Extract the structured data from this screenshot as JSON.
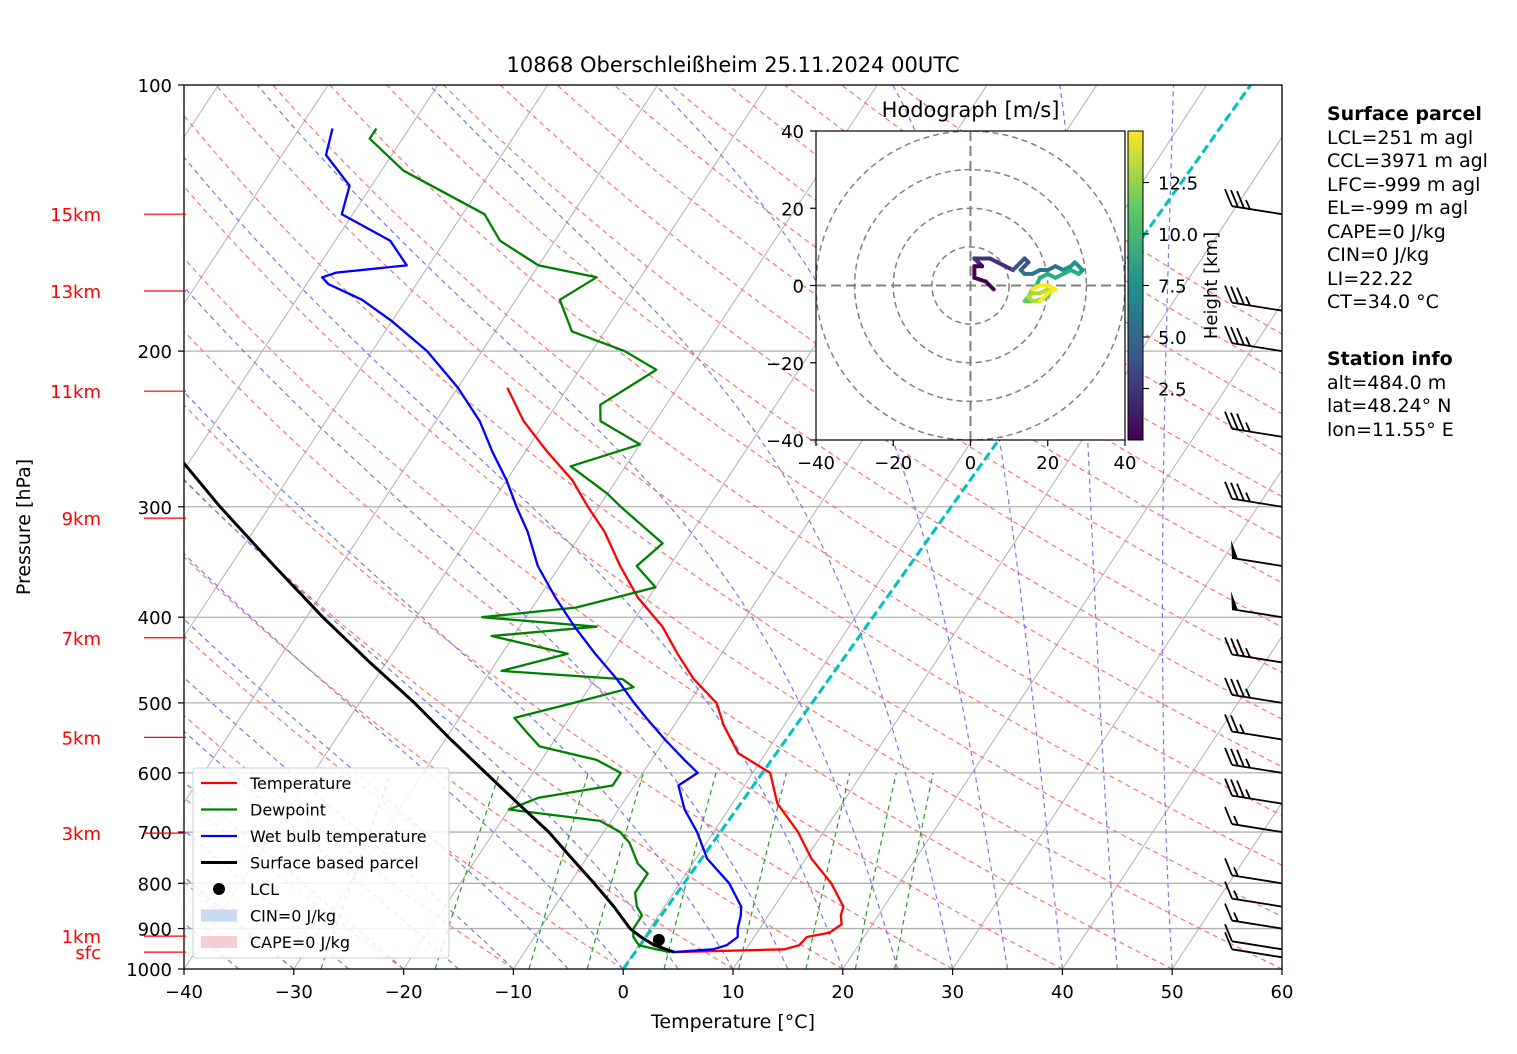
{
  "title": "10868 Oberschleißheim 25.11.2024 00UTC",
  "chart_data": {
    "type": "line",
    "subtype": "skew-T log-P diagram",
    "title": "10868 Oberschleißheim 25.11.2024 00UTC",
    "xlabel": "Temperature [°C]",
    "ylabel": "Pressure [hPa]",
    "xlim": [
      -40,
      60
    ],
    "ylim": [
      1000,
      100
    ],
    "y_scale": "log",
    "grid": true,
    "xticks": [
      "−40",
      "−30",
      "−20",
      "−10",
      "0",
      "10",
      "20",
      "30",
      "40",
      "50",
      "60"
    ],
    "yticks": [
      "100",
      "200",
      "300",
      "400",
      "500",
      "600",
      "700",
      "800",
      "900",
      "1000"
    ],
    "height_labels": [
      {
        "label": "15km",
        "p": 140
      },
      {
        "label": "13km",
        "p": 171
      },
      {
        "label": "11km",
        "p": 222
      },
      {
        "label": "9km",
        "p": 309
      },
      {
        "label": "7km",
        "p": 422
      },
      {
        "label": "5km",
        "p": 547
      },
      {
        "label": "3km",
        "p": 702
      },
      {
        "label": "1km",
        "p": 918
      },
      {
        "label": "sfc",
        "p": 957
      }
    ],
    "legend": {
      "placement": "lower-left",
      "entries": [
        {
          "label": "Temperature",
          "color": "#ff0000",
          "kind": "line"
        },
        {
          "label": "Dewpoint",
          "color": "#008000",
          "kind": "line"
        },
        {
          "label": "Wet bulb temperature",
          "color": "#0000ff",
          "kind": "line"
        },
        {
          "label": "Surface based parcel",
          "color": "#000000",
          "kind": "line"
        },
        {
          "label": "LCL",
          "color": "#000000",
          "kind": "dot"
        },
        {
          "label": "CIN=0 J/kg",
          "color": "#c6dbef",
          "kind": "patch"
        },
        {
          "label": "CAPE=0 J/kg",
          "color": "#f6cfd4",
          "kind": "patch"
        }
      ]
    },
    "series": [
      {
        "name": "Temperature",
        "color": "#ff0000",
        "points": [
          [
            957,
            3.6
          ],
          [
            950,
            13.5
          ],
          [
            940,
            14.6
          ],
          [
            920,
            14.8
          ],
          [
            910,
            16.6
          ],
          [
            890,
            17.2
          ],
          [
            870,
            16.6
          ],
          [
            850,
            16.3
          ],
          [
            800,
            13.8
          ],
          [
            750,
            10.5
          ],
          [
            700,
            7.7
          ],
          [
            650,
            4.1
          ],
          [
            600,
            1.6
          ],
          [
            570,
            -2.5
          ],
          [
            530,
            -5.5
          ],
          [
            500,
            -7.5
          ],
          [
            470,
            -11
          ],
          [
            440,
            -14
          ],
          [
            410,
            -17
          ],
          [
            380,
            -21
          ],
          [
            350,
            -24.5
          ],
          [
            320,
            -28
          ],
          [
            300,
            -31
          ],
          [
            280,
            -34
          ],
          [
            260,
            -38
          ],
          [
            240,
            -42
          ],
          [
            220,
            -45.5
          ]
        ]
      },
      {
        "name": "Dewpoint",
        "color": "#008000",
        "points": [
          [
            957,
            3.3
          ],
          [
            950,
            1.8
          ],
          [
            940,
            0
          ],
          [
            920,
            -1
          ],
          [
            900,
            -1.5
          ],
          [
            870,
            -1.5
          ],
          [
            850,
            -2.5
          ],
          [
            820,
            -3.5
          ],
          [
            780,
            -3.5
          ],
          [
            760,
            -5
          ],
          [
            720,
            -7
          ],
          [
            700,
            -8.5
          ],
          [
            680,
            -11
          ],
          [
            660,
            -20
          ],
          [
            640,
            -18
          ],
          [
            620,
            -12
          ],
          [
            600,
            -12
          ],
          [
            580,
            -15
          ],
          [
            560,
            -21
          ],
          [
            540,
            -23
          ],
          [
            520,
            -25
          ],
          [
            500,
            -20.5
          ],
          [
            480,
            -16
          ],
          [
            470,
            -17.5
          ],
          [
            460,
            -29
          ],
          [
            440,
            -24
          ],
          [
            420,
            -32
          ],
          [
            410,
            -23
          ],
          [
            400,
            -34
          ],
          [
            390,
            -26
          ],
          [
            370,
            -20
          ],
          [
            350,
            -23
          ],
          [
            330,
            -22
          ],
          [
            300,
            -28
          ],
          [
            290,
            -30
          ],
          [
            270,
            -35
          ],
          [
            255,
            -30
          ],
          [
            240,
            -35
          ],
          [
            230,
            -36
          ],
          [
            210,
            -33
          ],
          [
            200,
            -37
          ],
          [
            190,
            -43
          ],
          [
            175,
            -46
          ],
          [
            165,
            -44
          ],
          [
            160,
            -50
          ],
          [
            150,
            -55
          ],
          [
            140,
            -58
          ],
          [
            125,
            -68
          ],
          [
            115,
            -73
          ],
          [
            112,
            -73
          ]
        ]
      },
      {
        "name": "Wet bulb temperature",
        "color": "#0000ff",
        "points": [
          [
            957,
            3.5
          ],
          [
            950,
            7
          ],
          [
            940,
            8
          ],
          [
            920,
            8.5
          ],
          [
            900,
            8
          ],
          [
            870,
            7.5
          ],
          [
            850,
            7
          ],
          [
            800,
            4.5
          ],
          [
            750,
            1
          ],
          [
            700,
            -1.5
          ],
          [
            660,
            -4
          ],
          [
            620,
            -6
          ],
          [
            600,
            -5
          ],
          [
            580,
            -7
          ],
          [
            550,
            -10
          ],
          [
            520,
            -13
          ],
          [
            500,
            -15
          ],
          [
            470,
            -18
          ],
          [
            440,
            -21.5
          ],
          [
            410,
            -25
          ],
          [
            380,
            -28.5
          ],
          [
            350,
            -32
          ],
          [
            320,
            -35
          ],
          [
            300,
            -37.5
          ],
          [
            280,
            -40
          ],
          [
            260,
            -43
          ],
          [
            240,
            -46
          ],
          [
            220,
            -50
          ],
          [
            200,
            -55
          ],
          [
            185,
            -60
          ],
          [
            175,
            -64
          ],
          [
            168,
            -68
          ],
          [
            165,
            -69
          ],
          [
            163,
            -68
          ],
          [
            160,
            -62
          ],
          [
            150,
            -65
          ],
          [
            140,
            -71
          ],
          [
            130,
            -72
          ],
          [
            120,
            -76
          ],
          [
            112,
            -77
          ]
        ]
      },
      {
        "name": "Surface based parcel",
        "color": "#000000",
        "points": [
          [
            957,
            3.6
          ],
          [
            940,
            1.4
          ],
          [
            920,
            -0.3
          ],
          [
            900,
            -1.8
          ],
          [
            850,
            -4.6
          ],
          [
            800,
            -7.8
          ],
          [
            750,
            -11.3
          ],
          [
            700,
            -15
          ],
          [
            650,
            -19.5
          ],
          [
            600,
            -24.3
          ],
          [
            550,
            -29.5
          ],
          [
            500,
            -35
          ],
          [
            450,
            -41.5
          ],
          [
            400,
            -48.5
          ],
          [
            350,
            -56
          ],
          [
            300,
            -64.5
          ],
          [
            250,
            -74
          ],
          [
            230,
            -78
          ],
          [
            215,
            -82
          ]
        ]
      }
    ],
    "lcl": {
      "p": 927,
      "t": 1.5
    },
    "dashed_line": {
      "color": "#00c0c0",
      "points": [
        [
          1000,
          0
        ],
        [
          100,
          4
        ]
      ]
    },
    "wind_barbs": [
      {
        "p": 140,
        "speed_kt": 35
      },
      {
        "p": 180,
        "speed_kt": 35
      },
      {
        "p": 200,
        "speed_kt": 35
      },
      {
        "p": 250,
        "speed_kt": 35
      },
      {
        "p": 300,
        "speed_kt": 35
      },
      {
        "p": 350,
        "speed_kt": 50
      },
      {
        "p": 400,
        "speed_kt": 50
      },
      {
        "p": 450,
        "speed_kt": 35
      },
      {
        "p": 500,
        "speed_kt": 35
      },
      {
        "p": 550,
        "speed_kt": 25
      },
      {
        "p": 600,
        "speed_kt": 35
      },
      {
        "p": 650,
        "speed_kt": 35
      },
      {
        "p": 700,
        "speed_kt": 15
      },
      {
        "p": 800,
        "speed_kt": 15
      },
      {
        "p": 850,
        "speed_kt": 15
      },
      {
        "p": 900,
        "speed_kt": 15
      },
      {
        "p": 950,
        "speed_kt": 10
      },
      {
        "p": 970,
        "speed_kt": 10
      }
    ],
    "hodograph": {
      "title": "Hodograph [m/s]",
      "xlim": [
        -40,
        40
      ],
      "ylim": [
        -40,
        40
      ],
      "xticks": [
        "−40",
        "−20",
        "0",
        "20",
        "40"
      ],
      "yticks": [
        "40",
        "20",
        "0",
        "−20",
        "−40"
      ],
      "rings": [
        10,
        20,
        30,
        40
      ],
      "colorbar": {
        "label": "Height [km]",
        "ticks": [
          "2.5",
          "5.0",
          "7.5",
          "10.0",
          "12.5"
        ],
        "range": [
          0,
          15
        ]
      },
      "trace": [
        [
          6,
          -1
        ],
        [
          4,
          1
        ],
        [
          1,
          2
        ],
        [
          1,
          3
        ],
        [
          1,
          5
        ],
        [
          3,
          5
        ],
        [
          2,
          6
        ],
        [
          1,
          7
        ],
        [
          3,
          7
        ],
        [
          5,
          7
        ],
        [
          7,
          6
        ],
        [
          9,
          5
        ],
        [
          11,
          4
        ],
        [
          12,
          5
        ],
        [
          13,
          6
        ],
        [
          14,
          7
        ],
        [
          15,
          6
        ],
        [
          14,
          5
        ],
        [
          13,
          4
        ],
        [
          14,
          3
        ],
        [
          16,
          3
        ],
        [
          18,
          4
        ],
        [
          20,
          4
        ],
        [
          22,
          5
        ],
        [
          24,
          4
        ],
        [
          26,
          5
        ],
        [
          27,
          6
        ],
        [
          28,
          5
        ],
        [
          29,
          4
        ],
        [
          28,
          3
        ],
        [
          26,
          4
        ],
        [
          24,
          3
        ],
        [
          22,
          2
        ],
        [
          20,
          3
        ],
        [
          18,
          2
        ],
        [
          17,
          0
        ],
        [
          16,
          -1
        ],
        [
          15,
          -3
        ],
        [
          14,
          -4
        ],
        [
          17,
          -4
        ],
        [
          20,
          -3
        ],
        [
          21,
          -1
        ],
        [
          20,
          -1
        ],
        [
          18,
          -2
        ],
        [
          16,
          -2
        ],
        [
          15,
          -3
        ],
        [
          16,
          -4
        ],
        [
          18,
          -4
        ],
        [
          20,
          -2
        ],
        [
          22,
          -1
        ],
        [
          20,
          0
        ],
        [
          18,
          0
        ],
        [
          16,
          -1
        ]
      ]
    }
  },
  "surface_parcel": {
    "header": "Surface parcel",
    "lines": [
      "LCL=251 m agl",
      "CCL=3971 m agl",
      "LFC=-999 m agl",
      "EL=-999 m agl",
      "CAPE=0 J/kg",
      "CIN=0 J/kg",
      "LI=22.22",
      "CT=34.0 °C"
    ]
  },
  "station_info": {
    "header": "Station info",
    "lines": [
      "alt=484.0 m",
      "lat=48.24° N",
      "lon=11.55° E"
    ]
  }
}
